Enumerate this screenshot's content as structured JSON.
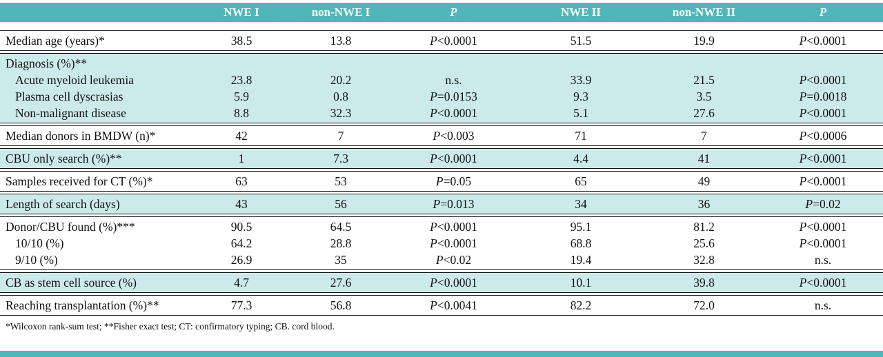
{
  "colors": {
    "header_accent": "#4fb7b9",
    "shaded_row": "#cdeaea",
    "text": "#111111"
  },
  "table": {
    "columns": [
      "",
      "NWE I",
      "non-NWE I",
      "P",
      "NWE II",
      "non-NWE II",
      "P"
    ],
    "groups": [
      {
        "shaded": false,
        "rows": [
          {
            "label": "Median age (years)*",
            "indent": false,
            "values": [
              "38.5",
              "13.8",
              "P<0.0001",
              "51.5",
              "19.9",
              "P<0.0001"
            ]
          }
        ]
      },
      {
        "shaded": true,
        "rows": [
          {
            "label": "Diagnosis (%)**",
            "indent": false,
            "values": [
              "",
              "",
              "",
              "",
              "",
              ""
            ]
          },
          {
            "label": "Acute myeloid leukemia",
            "indent": true,
            "values": [
              "23.8",
              "20.2",
              "n.s.",
              "33.9",
              "21.5",
              "P<0.0001"
            ]
          },
          {
            "label": "Plasma cell dyscrasias",
            "indent": true,
            "values": [
              "5.9",
              "0.8",
              "P=0.0153",
              "9.3",
              "3.5",
              "P=0.0018"
            ]
          },
          {
            "label": "Non-malignant disease",
            "indent": true,
            "values": [
              "8.8",
              "32.3",
              "P<0.0001",
              "5.1",
              "27.6",
              "P<0.0001"
            ]
          }
        ]
      },
      {
        "shaded": false,
        "rows": [
          {
            "label": "Median donors in BMDW (n)*",
            "indent": false,
            "values": [
              "42",
              "7",
              "P<0.003",
              "71",
              "7",
              "P<0.0006"
            ]
          }
        ]
      },
      {
        "shaded": true,
        "rows": [
          {
            "label": "CBU only search (%)**",
            "indent": false,
            "values": [
              "1",
              "7.3",
              "P<0.0001",
              "4.4",
              "41",
              "P<0.0001"
            ]
          }
        ]
      },
      {
        "shaded": false,
        "rows": [
          {
            "label": "Samples received for CT (%)*",
            "indent": false,
            "values": [
              "63",
              "53",
              "P=0.05",
              "65",
              "49",
              "P<0.0001"
            ]
          }
        ]
      },
      {
        "shaded": true,
        "rows": [
          {
            "label": "Length of search (days)",
            "indent": false,
            "values": [
              "43",
              "56",
              "P=0.013",
              "34",
              "36",
              "P=0.02"
            ]
          }
        ]
      },
      {
        "shaded": false,
        "rows": [
          {
            "label": "Donor/CBU found (%)***",
            "indent": false,
            "values": [
              "90.5",
              "64.5",
              "P<0.0001",
              "95.1",
              "81.2",
              "P<0.0001"
            ]
          },
          {
            "label": "10/10 (%)",
            "indent": true,
            "values": [
              "64.2",
              "28.8",
              "P<0.0001",
              "68.8",
              "25.6",
              "P<0.0001"
            ]
          },
          {
            "label": "9/10 (%)",
            "indent": true,
            "values": [
              "26.9",
              "35",
              "P<0.02",
              "19.4",
              "32.8",
              "n.s."
            ]
          }
        ]
      },
      {
        "shaded": true,
        "rows": [
          {
            "label": "CB as stem cell source (%)",
            "indent": false,
            "values": [
              "4.7",
              "27.6",
              "P<0.0001",
              "10.1",
              "39.8",
              "P<0.0001"
            ]
          }
        ]
      },
      {
        "shaded": false,
        "rows": [
          {
            "label": "Reaching transplantation (%)**",
            "indent": false,
            "values": [
              "77.3",
              "56.8",
              "P<0.0041",
              "82.2",
              "72.0",
              "n.s."
            ]
          }
        ]
      }
    ],
    "footnote": "*Wilcoxon rank-sum test; **Fisher exact test; CT: confirmatory typing; CB. cord blood."
  }
}
